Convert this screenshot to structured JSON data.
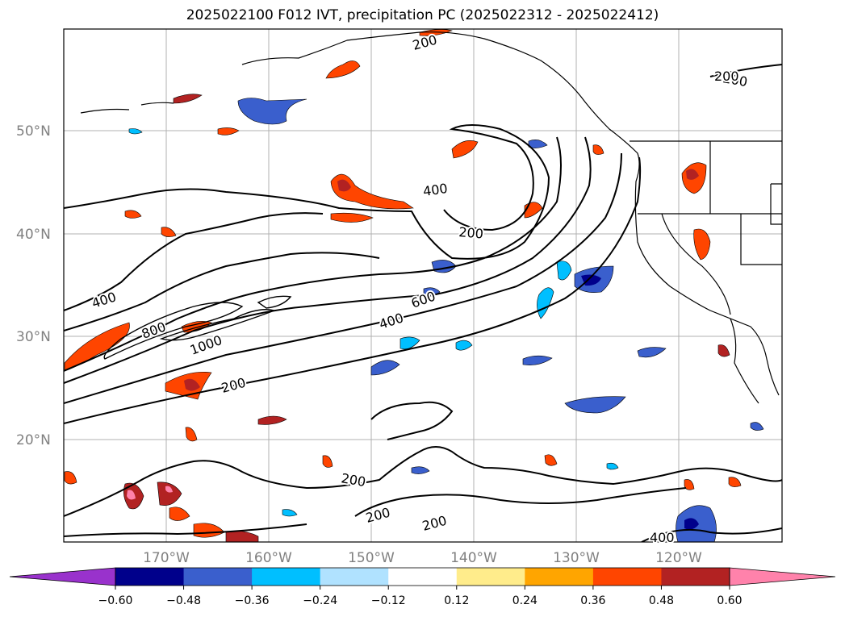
{
  "title": "2025022100 F012 IVT, precipitation PC (2025022312 - 2025022412)",
  "map": {
    "lat_labels": [
      "50°N",
      "40°N",
      "30°N",
      "20°N"
    ],
    "lon_labels": [
      "170°W",
      "160°W",
      "150°W",
      "140°W",
      "130°W",
      "120°W"
    ],
    "ivt_contour_labels": [
      "200",
      "200",
      "200",
      "400",
      "200",
      "400",
      "600",
      "400",
      "800",
      "1000",
      "200",
      "200",
      "200",
      "200",
      "400"
    ],
    "label_color": "#808080"
  },
  "colorbar": {
    "tick_labels": [
      "−0.60",
      "−0.48",
      "−0.36",
      "−0.24",
      "−0.12",
      "0.12",
      "0.24",
      "0.36",
      "0.48",
      "0.60"
    ],
    "colors": {
      "under": "#9932cc",
      "bins": [
        "#00008b",
        "#3a5fcd",
        "#00bfff",
        "#b0e2ff",
        "#ffffff",
        "#ffec8b",
        "#ffa500",
        "#ff4500",
        "#b22222"
      ],
      "over": "#ff82ab"
    }
  }
}
